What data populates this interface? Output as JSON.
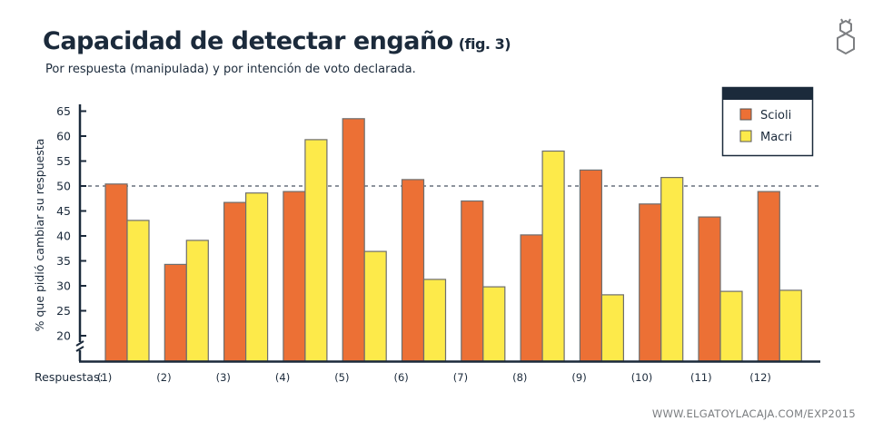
{
  "header": {
    "title": "Capacidad de detectar engaño",
    "fig": "(fig. 3)",
    "subtitle": "Por respuesta (manipulada) y por intención de voto declarada."
  },
  "footer": {
    "url": "WWW.ELGATOYLACAJA.COM/EXP2015"
  },
  "logo": {
    "icon": "cat-hexagon-logo"
  },
  "colors": {
    "scioli": "#ec7035",
    "macri": "#fdea4a",
    "axis": "#1b2a3b",
    "bar_edge": "#6e6e6e"
  },
  "chart_data": {
    "type": "bar",
    "title": "Capacidad de detectar engaño (fig. 3)",
    "subtitle": "Por respuesta (manipulada) y por intención de voto declarada.",
    "xlabel": "Respuestas:",
    "ylabel": "% que pidió cambiar su respuesta",
    "ylim": [
      15,
      66
    ],
    "yticks": [
      20,
      25,
      30,
      35,
      40,
      45,
      50,
      55,
      60,
      65
    ],
    "axis_break": true,
    "reference_line": 50,
    "grid": false,
    "legend_position": "top-right",
    "categories": [
      "(1)",
      "(2)",
      "(3)",
      "(4)",
      "(5)",
      "(6)",
      "(7)",
      "(8)",
      "(9)",
      "(10)",
      "(11)",
      "(12)"
    ],
    "series": [
      {
        "name": "Scioli",
        "values": [
          50.4,
          34.3,
          46.7,
          48.9,
          63.5,
          51.3,
          47.0,
          40.2,
          53.2,
          46.4,
          43.8,
          48.9
        ]
      },
      {
        "name": "Macri",
        "values": [
          43.1,
          39.1,
          48.6,
          59.3,
          36.9,
          31.3,
          29.8,
          57.0,
          28.2,
          51.7,
          28.9,
          29.1
        ]
      }
    ]
  }
}
